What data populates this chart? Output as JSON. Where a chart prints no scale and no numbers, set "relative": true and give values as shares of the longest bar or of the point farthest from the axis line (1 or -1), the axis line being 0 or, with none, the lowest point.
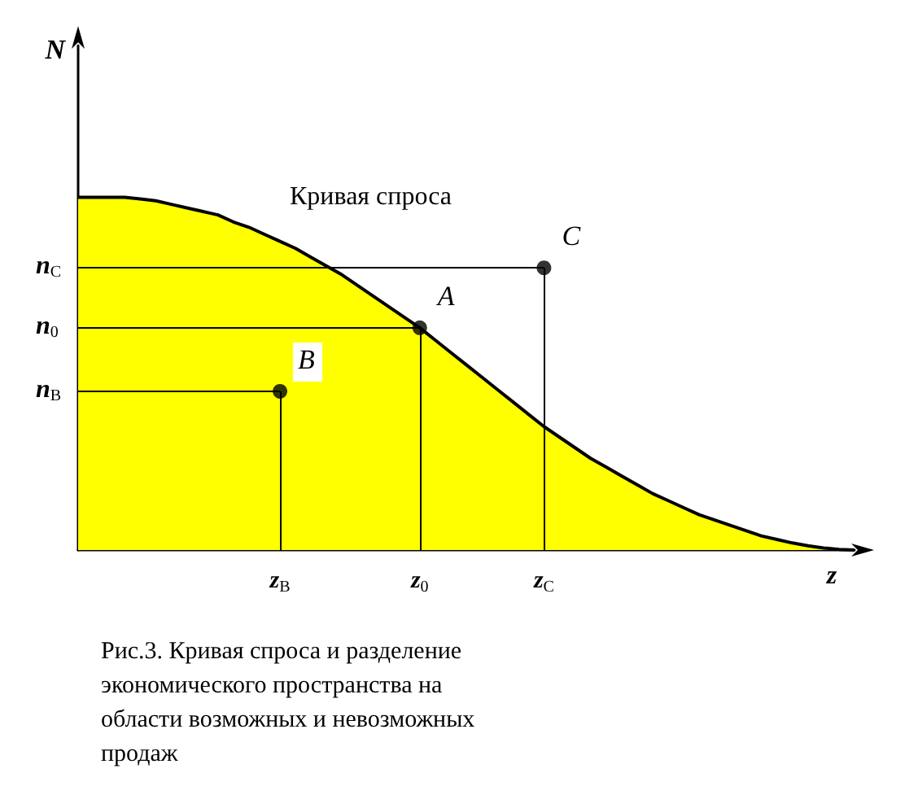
{
  "chart_data": {
    "type": "area",
    "relative": true,
    "xlabel": "z",
    "ylabel": "N",
    "categories": [
      null,
      null,
      null,
      null,
      null,
      null,
      null,
      null,
      null,
      null,
      null,
      null,
      null,
      "z$_{B}$",
      null,
      null,
      null,
      null,
      null,
      null,
      null,
      null,
      "z$_{0}$",
      null,
      null,
      null,
      null,
      null,
      null,
      null,
      "z$_{C}$",
      null,
      null,
      null,
      null,
      null,
      null,
      null,
      null,
      null,
      null,
      null,
      null,
      null,
      null,
      null,
      null,
      null,
      null,
      null,
      null
    ],
    "series": [
      {
        "color": "#ffff00",
        "values": [
          1.0,
          1.0,
          1.0,
          1.0,
          0.995,
          0.99,
          0.98,
          0.97,
          0.96,
          0.95,
          0.93,
          0.915,
          0.895,
          0.875,
          0.855,
          0.83,
          0.805,
          0.78,
          0.75,
          0.72,
          0.69,
          0.66,
          0.63,
          0.595,
          0.56,
          0.525,
          0.49,
          0.455,
          0.42,
          0.385,
          0.35,
          0.32,
          0.29,
          0.26,
          0.235,
          0.21,
          0.185,
          0.16,
          0.14,
          0.12,
          0.1,
          0.085,
          0.07,
          0.055,
          0.04,
          0.03,
          0.02,
          0.012,
          0.006,
          0.002,
          0
        ]
      },
      {
        "type": "scatter",
        "color": "#000000",
        "marker": "circle",
        "x": [
          "z$_{B}$",
          "z$_{0}$",
          "z$_{C}$"
        ],
        "values": [
          0.45,
          0.63,
          0.8
        ]
      }
    ],
    "annotations": [
      "Кривая спроса",
      {
        "text": "A",
        "x": "z$_{0}$",
        "y": 0.63
      },
      {
        "text": "B",
        "x": "z$_{B}$",
        "y": 0.45
      },
      {
        "text": "C",
        "x": "z$_{C}$",
        "y": 0.8
      },
      "n$_{C}$",
      "n$_{0}$",
      "n$_{B}$",
      "Рис.3. Кривая спроса и разделение экономического пространства на области возможных и невозможных продаж"
    ]
  }
}
